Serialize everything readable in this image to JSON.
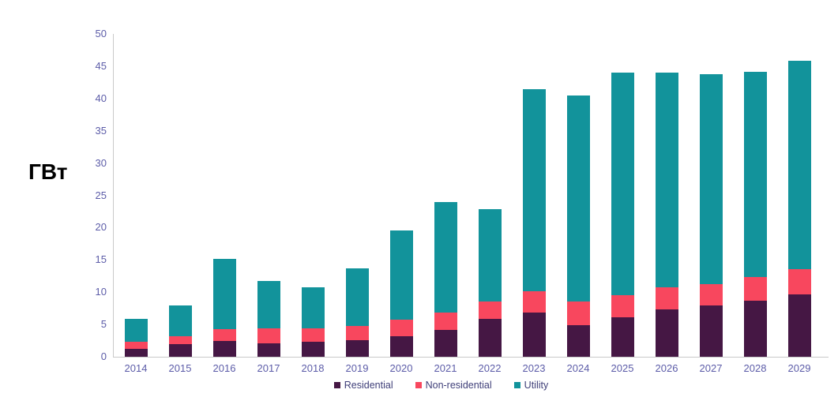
{
  "chart_data": {
    "type": "bar",
    "stacked": true,
    "title": "",
    "ylabel": "ГВт",
    "xlabel": "",
    "ylim": [
      0,
      50
    ],
    "yticks": [
      0,
      5,
      10,
      15,
      20,
      25,
      30,
      35,
      40,
      45,
      50
    ],
    "grid": false,
    "legend_position": "bottom",
    "categories": [
      "2014",
      "2015",
      "2016",
      "2017",
      "2018",
      "2019",
      "2020",
      "2021",
      "2022",
      "2023",
      "2024",
      "2025",
      "2026",
      "2027",
      "2028",
      "2029"
    ],
    "series": [
      {
        "name": "Residential",
        "color": "#451744",
        "values": [
          1.2,
          2.0,
          2.4,
          2.1,
          2.3,
          2.6,
          3.2,
          4.1,
          5.9,
          6.9,
          4.9,
          6.1,
          7.3,
          8.0,
          8.7,
          9.6
        ]
      },
      {
        "name": "Non-residential",
        "color": "#f8475e",
        "values": [
          1.1,
          1.2,
          1.9,
          2.3,
          2.1,
          2.2,
          2.5,
          2.8,
          2.7,
          3.3,
          3.6,
          3.4,
          3.4,
          3.3,
          3.7,
          4.0
        ]
      },
      {
        "name": "Utility",
        "color": "#12939b",
        "values": [
          3.6,
          4.7,
          10.9,
          7.3,
          6.4,
          8.9,
          13.9,
          17.0,
          14.2,
          31.2,
          32.0,
          34.5,
          33.3,
          32.5,
          31.7,
          32.2
        ]
      }
    ]
  },
  "colors": {
    "axis_line": "#c9c9c9",
    "tick_label": "#5c5ca8",
    "legend_text": "#3e3e78",
    "y_title": "#000000",
    "background": "#ffffff"
  }
}
